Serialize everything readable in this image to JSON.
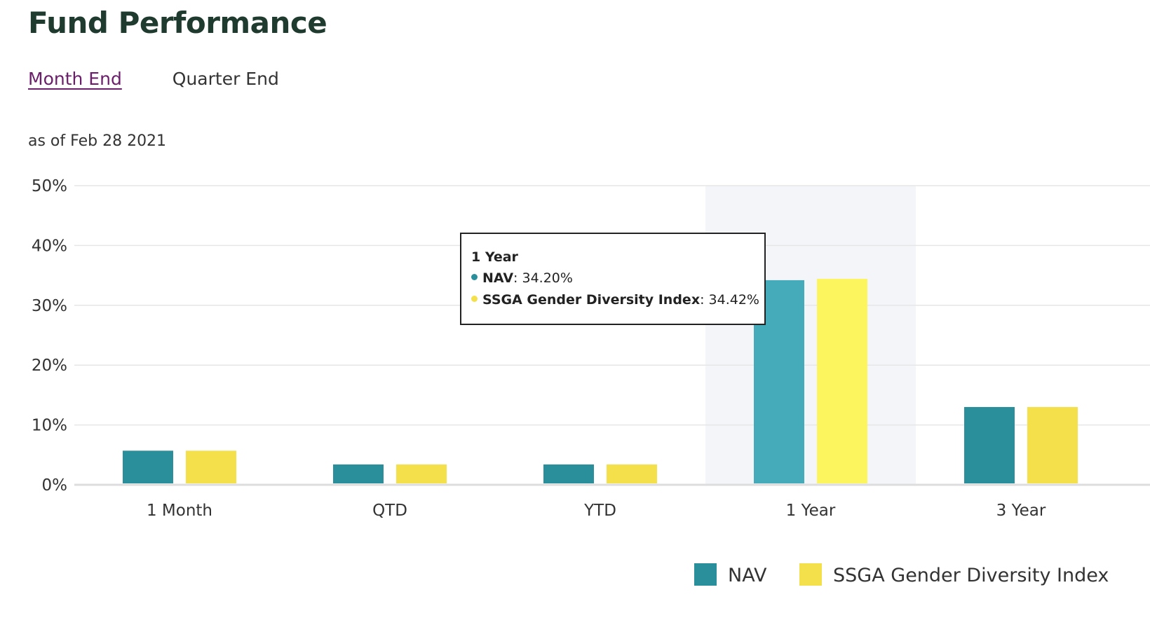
{
  "header": {
    "title": "Fund Performance"
  },
  "tabs": [
    {
      "label": "Month End",
      "active": true
    },
    {
      "label": "Quarter End",
      "active": false
    }
  ],
  "as_of": "as of Feb 28 2021",
  "colors": {
    "nav": "#2a8f9b",
    "index": "#f3e04b",
    "nav_highlight": "#45abbb",
    "index_highlight": "#fcf55e",
    "grid": "#e6e6e6",
    "highlight_band": "#f3f5f8"
  },
  "chart_data": {
    "type": "bar",
    "categories": [
      "1 Month",
      "QTD",
      "YTD",
      "1 Year",
      "3 Year"
    ],
    "series": [
      {
        "name": "NAV",
        "values": [
          5.7,
          3.4,
          3.4,
          34.2,
          13.0
        ]
      },
      {
        "name": "SSGA Gender Diversity Index",
        "values": [
          5.7,
          3.4,
          3.4,
          34.42,
          13.0
        ]
      }
    ],
    "yticks": [
      "0%",
      "10%",
      "20%",
      "30%",
      "40%",
      "50%"
    ],
    "ylim": [
      0,
      50
    ],
    "highlighted_category": "1 Year",
    "legend_position": "bottom-right"
  },
  "tooltip": {
    "heading": "1 Year",
    "rows": [
      {
        "name": "NAV",
        "sep": ":",
        "value": "34.20%"
      },
      {
        "name": "SSGA Gender Diversity Index",
        "sep": ":",
        "value": "34.42%"
      }
    ]
  },
  "legend": [
    {
      "label": "NAV"
    },
    {
      "label": "SSGA Gender Diversity Index"
    }
  ]
}
